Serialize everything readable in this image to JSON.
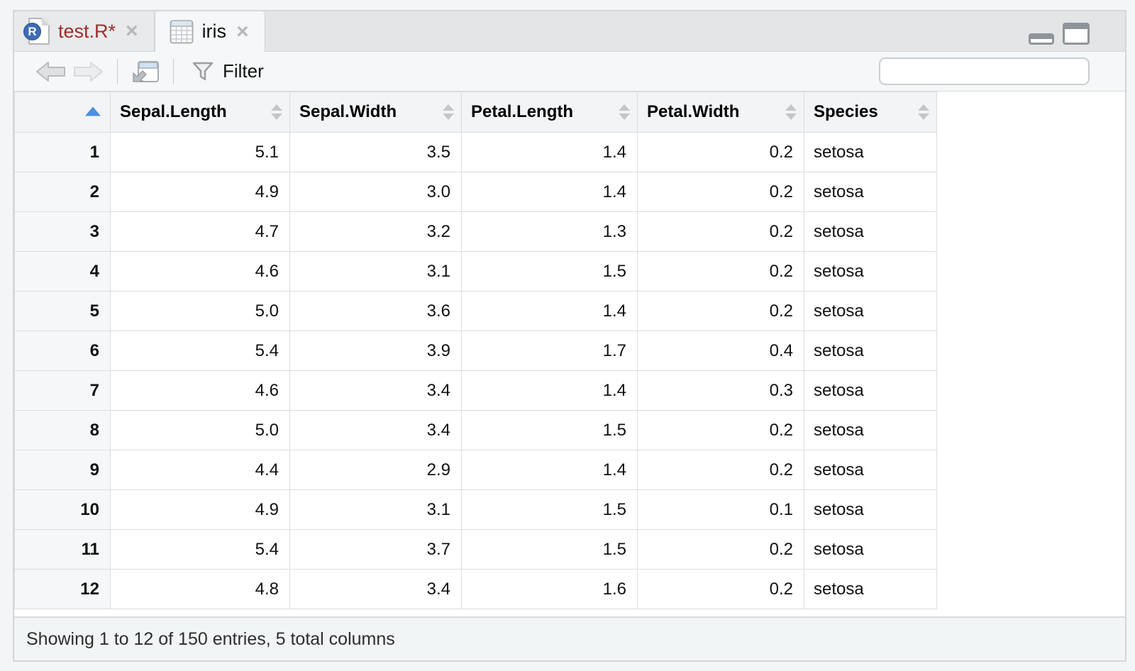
{
  "window": {
    "tabs": [
      {
        "label": "test.R*",
        "active": false
      },
      {
        "label": "iris",
        "active": true
      }
    ]
  },
  "icons": {
    "close": "×"
  },
  "toolbar": {
    "filter_label": "Filter",
    "search": {
      "value": "",
      "placeholder": ""
    }
  },
  "table": {
    "row_header_sort": "ascending",
    "columns": [
      {
        "label": "Sepal.Length",
        "type": "numeric"
      },
      {
        "label": "Sepal.Width",
        "type": "numeric"
      },
      {
        "label": "Petal.Length",
        "type": "numeric"
      },
      {
        "label": "Petal.Width",
        "type": "numeric"
      },
      {
        "label": "Species",
        "type": "factor"
      }
    ],
    "rows": [
      {
        "n": "1",
        "cells": [
          "5.1",
          "3.5",
          "1.4",
          "0.2",
          "setosa"
        ]
      },
      {
        "n": "2",
        "cells": [
          "4.9",
          "3.0",
          "1.4",
          "0.2",
          "setosa"
        ]
      },
      {
        "n": "3",
        "cells": [
          "4.7",
          "3.2",
          "1.3",
          "0.2",
          "setosa"
        ]
      },
      {
        "n": "4",
        "cells": [
          "4.6",
          "3.1",
          "1.5",
          "0.2",
          "setosa"
        ]
      },
      {
        "n": "5",
        "cells": [
          "5.0",
          "3.6",
          "1.4",
          "0.2",
          "setosa"
        ]
      },
      {
        "n": "6",
        "cells": [
          "5.4",
          "3.9",
          "1.7",
          "0.4",
          "setosa"
        ]
      },
      {
        "n": "7",
        "cells": [
          "4.6",
          "3.4",
          "1.4",
          "0.3",
          "setosa"
        ]
      },
      {
        "n": "8",
        "cells": [
          "5.0",
          "3.4",
          "1.5",
          "0.2",
          "setosa"
        ]
      },
      {
        "n": "9",
        "cells": [
          "4.4",
          "2.9",
          "1.4",
          "0.2",
          "setosa"
        ]
      },
      {
        "n": "10",
        "cells": [
          "4.9",
          "3.1",
          "1.5",
          "0.1",
          "setosa"
        ]
      },
      {
        "n": "11",
        "cells": [
          "5.4",
          "3.7",
          "1.5",
          "0.2",
          "setosa"
        ]
      },
      {
        "n": "12",
        "cells": [
          "4.8",
          "3.4",
          "1.6",
          "0.2",
          "setosa"
        ]
      }
    ]
  },
  "status_bar": {
    "text": "Showing 1 to 12 of 150 entries, 5 total columns"
  }
}
